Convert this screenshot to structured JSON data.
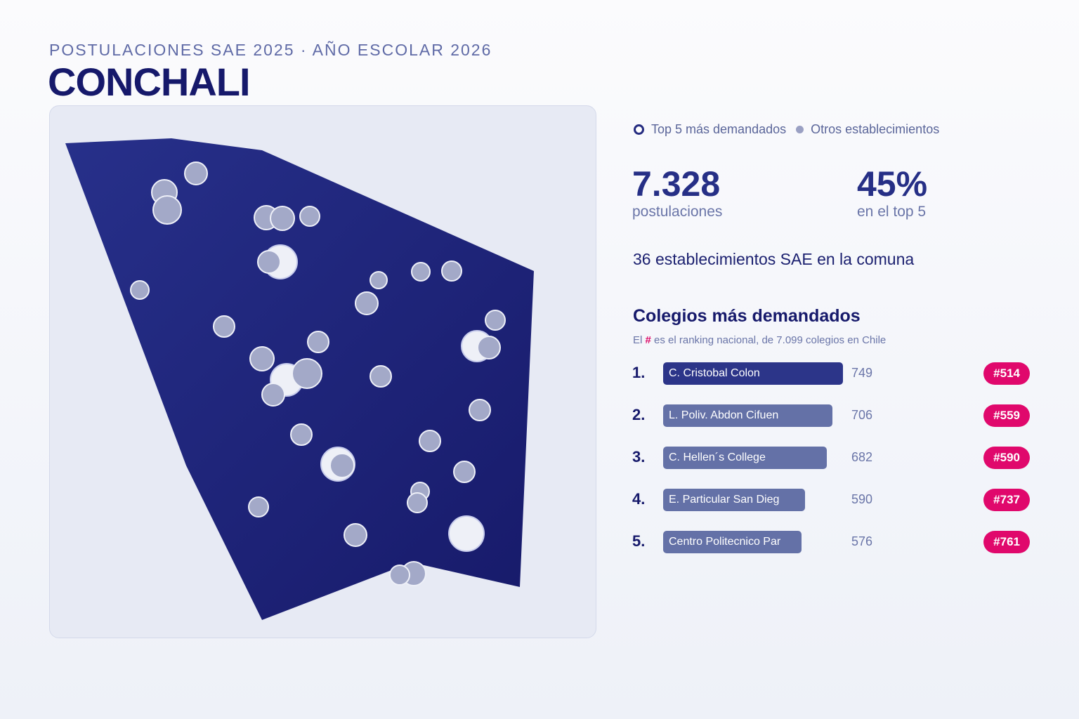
{
  "header": {
    "kicker": "POSTULACIONES SAE 2025 · AÑO ESCOLAR 2026",
    "title": "CONCHALI"
  },
  "legend": {
    "top5_label": "Top 5 más demandados",
    "others_label": "Otros establecimientos"
  },
  "stats": {
    "applications_value": "7.328",
    "applications_label": "postulaciones",
    "top5_share_value": "45%",
    "top5_share_label": "en el top 5"
  },
  "schools_count_text": "36 establecimientos SAE en la comuna",
  "ranking": {
    "title": "Colegios más demandados",
    "note_prefix": "El ",
    "note_hash": "#",
    "note_suffix": " es el ranking nacional, de 7.099 colegios en Chile",
    "max_value": 749,
    "rows": [
      {
        "rank": "1.",
        "name": "C. Cristobal Colon",
        "value": 749,
        "value_text": "749",
        "badge": "#514",
        "highlight": true
      },
      {
        "rank": "2.",
        "name": "L. Poliv. Abdon Cifuen",
        "value": 706,
        "value_text": "706",
        "badge": "#559",
        "highlight": false
      },
      {
        "rank": "3.",
        "name": "C. Hellen´s College",
        "value": 682,
        "value_text": "682",
        "badge": "#590",
        "highlight": false
      },
      {
        "rank": "4.",
        "name": "E. Particular San Dieg",
        "value": 590,
        "value_text": "590",
        "badge": "#737",
        "highlight": false
      },
      {
        "rank": "5.",
        "name": "Centro Politecnico Par",
        "value": 576,
        "value_text": "576",
        "badge": "#761",
        "highlight": false
      }
    ]
  },
  "colors": {
    "commune_fill": "#1e2478",
    "bar_highlight": "#2c3589",
    "bar_default": "#6471a7",
    "badge": "#e0086c",
    "school_dot": "#a3a9c8",
    "top5_dot": "#eef0f7"
  }
}
